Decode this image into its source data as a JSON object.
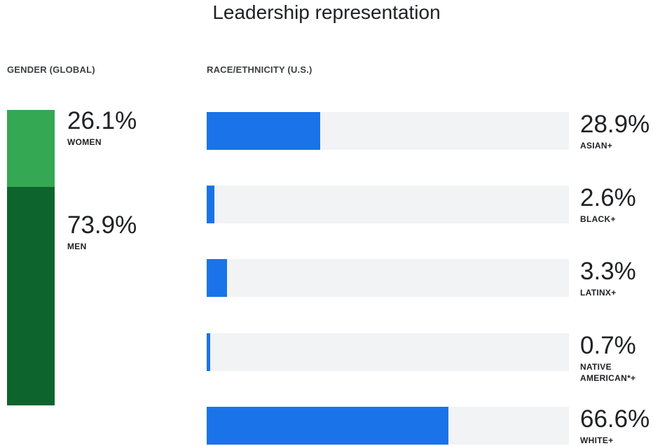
{
  "title": "Leadership representation",
  "gender_label": "GENDER (GLOBAL)",
  "race_label": "RACE/ETHNICITY  (U.S.)",
  "colors": {
    "women": "#34a853",
    "men": "#0d652d",
    "race_fill": "#1a73e8",
    "race_track": "#f1f3f4"
  },
  "chart_data": [
    {
      "type": "bar",
      "title": "GENDER (GLOBAL)",
      "stacked": true,
      "categories": [
        "WOMEN",
        "MEN"
      ],
      "values": [
        26.1,
        73.9
      ],
      "value_labels": [
        "26.1%",
        "73.9%"
      ],
      "unit": "%"
    },
    {
      "type": "bar",
      "title": "RACE/ETHNICITY  (U.S.)",
      "orientation": "horizontal",
      "categories": [
        "ASIAN+",
        "BLACK+",
        "LATINX+",
        "NATIVE AMERICAN*+",
        "WHITE+"
      ],
      "values": [
        28.9,
        2.6,
        3.3,
        0.7,
        66.6
      ],
      "value_labels": [
        "28.9%",
        "2.6%",
        "3.3%",
        "0.7%",
        "66.6%"
      ],
      "unit": "%",
      "xlim": [
        0,
        100
      ]
    }
  ]
}
